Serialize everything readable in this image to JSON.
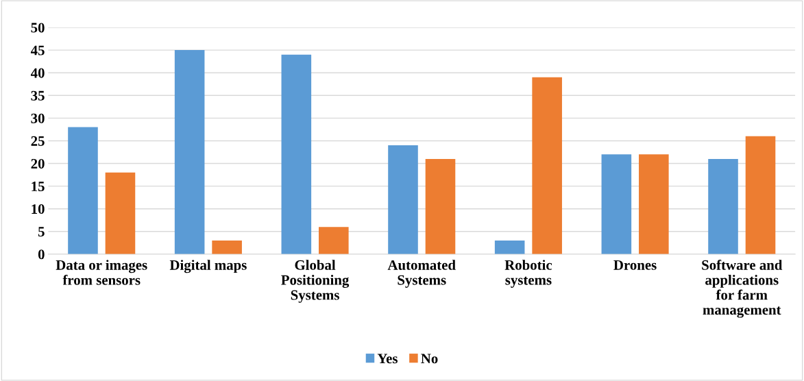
{
  "chart_data": {
    "type": "bar",
    "categories": [
      "Data or images\nfrom sensors",
      "Digital maps",
      "Global\nPositioning\nSystems",
      "Automated\nSystems",
      "Robotic\nsystems",
      "Drones",
      "Software and\napplications\nfor farm\nmanagement"
    ],
    "series": [
      {
        "name": "Yes",
        "color": "#5b9bd5",
        "values": [
          28,
          45,
          44,
          24,
          3,
          22,
          21
        ]
      },
      {
        "name": "No",
        "color": "#ed7d31",
        "values": [
          18,
          3,
          6,
          21,
          39,
          22,
          26
        ]
      }
    ],
    "ylim": [
      0,
      50
    ],
    "yticks": [
      0,
      5,
      10,
      15,
      20,
      25,
      30,
      35,
      40,
      45,
      50
    ],
    "grid": "y",
    "legend": "bottom"
  }
}
